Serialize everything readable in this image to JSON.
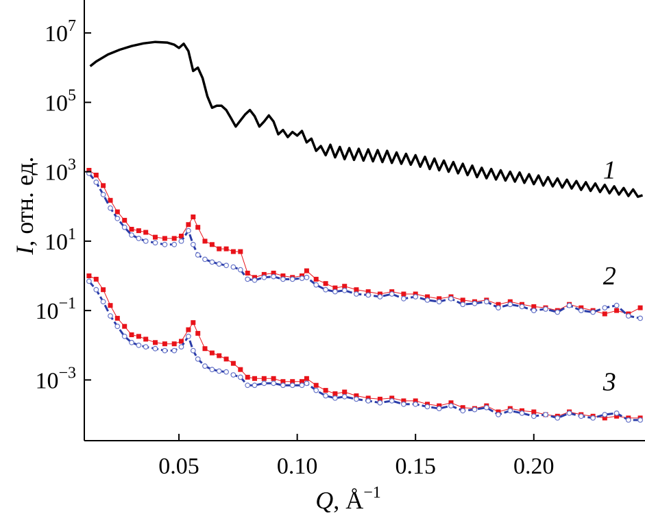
{
  "chart_data": {
    "type": "line",
    "title": "",
    "xlabel": {
      "symbol": "Q",
      "unit": "Å",
      "exponent": "−1"
    },
    "ylabel": {
      "symbol": "I",
      "unit": "отн. ед."
    },
    "x_ticks": [
      {
        "value": 0.05,
        "label": "0.05"
      },
      {
        "value": 0.1,
        "label": "0.10"
      },
      {
        "value": 0.15,
        "label": "0.15"
      },
      {
        "value": 0.2,
        "label": "0.20"
      }
    ],
    "y_ticks": [
      {
        "exp": 7,
        "label_base": "10",
        "label_exp": "7"
      },
      {
        "exp": 5,
        "label_base": "10",
        "label_exp": "5"
      },
      {
        "exp": 3,
        "label_base": "10",
        "label_exp": "3"
      },
      {
        "exp": 1,
        "label_base": "10",
        "label_exp": "1"
      },
      {
        "exp": -1,
        "label_base": "10",
        "label_exp": "−1"
      },
      {
        "exp": -3,
        "label_base": "10",
        "label_exp": "−3"
      }
    ],
    "xlim": [
      0.01,
      0.247
    ],
    "ylim_log10": [
      -4.75,
      7.95
    ],
    "yscale": "log",
    "grid": false,
    "curve_labels": [
      {
        "text": "1",
        "x": 0.232,
        "y": 1000
      },
      {
        "text": "2",
        "x": 0.232,
        "y": 0.9
      },
      {
        "text": "3",
        "x": 0.232,
        "y": 0.0008
      }
    ],
    "series": [
      {
        "id": "1",
        "color": "#000000",
        "style": "line",
        "x": [
          0.0125,
          0.015,
          0.02,
          0.025,
          0.03,
          0.035,
          0.04,
          0.045,
          0.048,
          0.05,
          0.052,
          0.054,
          0.056,
          0.058,
          0.06,
          0.062,
          0.064,
          0.066,
          0.068,
          0.07,
          0.072,
          0.074,
          0.076,
          0.078,
          0.08,
          0.082,
          0.084,
          0.086,
          0.088,
          0.09,
          0.092,
          0.094,
          0.096,
          0.098,
          0.1,
          0.102,
          0.104,
          0.106,
          0.108,
          0.11,
          0.112,
          0.114,
          0.116,
          0.118,
          0.12,
          0.122,
          0.124,
          0.126,
          0.128,
          0.13,
          0.132,
          0.134,
          0.136,
          0.138,
          0.14,
          0.142,
          0.144,
          0.146,
          0.148,
          0.15,
          0.152,
          0.154,
          0.156,
          0.158,
          0.16,
          0.162,
          0.164,
          0.166,
          0.168,
          0.17,
          0.172,
          0.174,
          0.176,
          0.178,
          0.18,
          0.182,
          0.184,
          0.186,
          0.188,
          0.19,
          0.192,
          0.194,
          0.196,
          0.198,
          0.2,
          0.202,
          0.204,
          0.206,
          0.208,
          0.21,
          0.212,
          0.214,
          0.216,
          0.218,
          0.22,
          0.222,
          0.224,
          0.226,
          0.228,
          0.23,
          0.232,
          0.234,
          0.236,
          0.238,
          0.24,
          0.242,
          0.244,
          0.246
        ],
        "y": [
          1100000,
          1500000,
          2400000,
          3300000,
          4200000,
          5000000,
          5500000,
          5300000,
          4600000,
          3700000,
          4900000,
          3000000,
          800000,
          1000000,
          500000,
          150000,
          70000,
          80000,
          80000,
          60000,
          35000,
          20000,
          30000,
          45000,
          60000,
          40000,
          20000,
          28000,
          42000,
          28000,
          12000,
          16000,
          10000,
          14000,
          11000,
          15000,
          7000,
          9000,
          4000,
          5500,
          3000,
          6000,
          2600,
          5200,
          2300,
          4800,
          2200,
          4600,
          2100,
          4400,
          2000,
          4200,
          1900,
          4000,
          1800,
          3600,
          1700,
          3300,
          1600,
          3000,
          1400,
          2700,
          1200,
          2400,
          1100,
          2100,
          1000,
          1900,
          900,
          1700,
          800,
          1500,
          700,
          1300,
          650,
          1200,
          600,
          1100,
          560,
          1000,
          520,
          950,
          480,
          850,
          440,
          780,
          400,
          700,
          380,
          640,
          350,
          590,
          330,
          540,
          300,
          500,
          280,
          460,
          260,
          420,
          240,
          380,
          220,
          340,
          200,
          310,
          190,
          210
        ]
      },
      {
        "id": "2-exp",
        "color": "#e8131a",
        "style": "squares",
        "x": [
          0.012,
          0.015,
          0.018,
          0.021,
          0.024,
          0.027,
          0.03,
          0.033,
          0.036,
          0.04,
          0.044,
          0.048,
          0.051,
          0.054,
          0.056,
          0.058,
          0.061,
          0.064,
          0.067,
          0.07,
          0.073,
          0.076,
          0.079,
          0.082,
          0.086,
          0.09,
          0.094,
          0.098,
          0.102,
          0.104,
          0.108,
          0.112,
          0.116,
          0.12,
          0.125,
          0.13,
          0.135,
          0.14,
          0.145,
          0.15,
          0.155,
          0.16,
          0.165,
          0.17,
          0.175,
          0.18,
          0.185,
          0.19,
          0.195,
          0.2,
          0.205,
          0.21,
          0.215,
          0.22,
          0.225,
          0.23,
          0.235,
          0.24,
          0.245
        ],
        "y": [
          1100,
          800,
          400,
          150,
          70,
          40,
          22,
          20,
          18,
          13,
          12,
          12,
          14,
          30,
          50,
          25,
          10,
          8,
          6,
          6,
          5,
          5,
          1.2,
          0.9,
          1.1,
          1.2,
          1.0,
          0.9,
          1.0,
          1.4,
          0.8,
          0.6,
          0.45,
          0.5,
          0.4,
          0.35,
          0.3,
          0.35,
          0.3,
          0.3,
          0.25,
          0.22,
          0.25,
          0.2,
          0.18,
          0.2,
          0.15,
          0.18,
          0.15,
          0.13,
          0.12,
          0.1,
          0.15,
          0.12,
          0.1,
          0.08,
          0.1,
          0.08,
          0.12
        ]
      },
      {
        "id": "2-fit",
        "color": "#6674c8",
        "style": "line-circles",
        "x": [
          0.012,
          0.015,
          0.018,
          0.021,
          0.024,
          0.027,
          0.03,
          0.033,
          0.036,
          0.04,
          0.044,
          0.048,
          0.051,
          0.054,
          0.056,
          0.058,
          0.061,
          0.064,
          0.067,
          0.07,
          0.073,
          0.076,
          0.079,
          0.082,
          0.086,
          0.09,
          0.094,
          0.098,
          0.102,
          0.104,
          0.108,
          0.112,
          0.116,
          0.12,
          0.125,
          0.13,
          0.135,
          0.14,
          0.145,
          0.15,
          0.155,
          0.16,
          0.165,
          0.17,
          0.175,
          0.18,
          0.185,
          0.19,
          0.195,
          0.2,
          0.205,
          0.21,
          0.215,
          0.22,
          0.225,
          0.23,
          0.235,
          0.24,
          0.245
        ],
        "y": [
          900,
          500,
          220,
          90,
          45,
          25,
          15,
          12,
          10,
          9,
          8,
          8,
          10,
          20,
          8,
          4,
          3,
          2.5,
          2.2,
          2,
          1.8,
          1.5,
          0.8,
          0.75,
          0.9,
          0.95,
          0.8,
          0.8,
          0.85,
          0.9,
          0.55,
          0.4,
          0.35,
          0.38,
          0.3,
          0.28,
          0.25,
          0.3,
          0.22,
          0.25,
          0.2,
          0.18,
          0.22,
          0.15,
          0.16,
          0.18,
          0.12,
          0.15,
          0.13,
          0.1,
          0.11,
          0.09,
          0.14,
          0.1,
          0.09,
          0.12,
          0.14,
          0.07,
          0.06
        ]
      },
      {
        "id": "3-exp",
        "color": "#e8131a",
        "style": "squares",
        "x": [
          0.012,
          0.015,
          0.018,
          0.021,
          0.024,
          0.027,
          0.03,
          0.033,
          0.036,
          0.04,
          0.044,
          0.048,
          0.051,
          0.054,
          0.056,
          0.058,
          0.061,
          0.064,
          0.067,
          0.07,
          0.073,
          0.076,
          0.079,
          0.082,
          0.086,
          0.09,
          0.094,
          0.098,
          0.102,
          0.104,
          0.108,
          0.112,
          0.116,
          0.12,
          0.125,
          0.13,
          0.135,
          0.14,
          0.145,
          0.15,
          0.155,
          0.16,
          0.165,
          0.17,
          0.175,
          0.18,
          0.185,
          0.19,
          0.195,
          0.2,
          0.205,
          0.21,
          0.215,
          0.22,
          0.225,
          0.23,
          0.235,
          0.24,
          0.245
        ],
        "y": [
          1,
          0.8,
          0.4,
          0.14,
          0.06,
          0.035,
          0.02,
          0.018,
          0.015,
          0.012,
          0.011,
          0.011,
          0.013,
          0.028,
          0.045,
          0.022,
          0.008,
          0.006,
          0.005,
          0.004,
          0.003,
          0.002,
          0.0012,
          0.0011,
          0.0011,
          0.0011,
          0.0009,
          0.0009,
          0.0009,
          0.0011,
          0.0007,
          0.0005,
          0.0004,
          0.00045,
          0.00035,
          0.0003,
          0.00028,
          0.0003,
          0.00025,
          0.00025,
          0.0002,
          0.00018,
          0.00022,
          0.00016,
          0.00015,
          0.00018,
          0.00012,
          0.00015,
          0.00013,
          0.00012,
          0.0001,
          9e-05,
          0.00012,
          0.0001,
          9e-05,
          8e-05,
          9e-05,
          8e-05,
          8e-05
        ]
      },
      {
        "id": "3-fit",
        "color": "#6674c8",
        "style": "line-circles",
        "x": [
          0.012,
          0.015,
          0.018,
          0.021,
          0.024,
          0.027,
          0.03,
          0.033,
          0.036,
          0.04,
          0.044,
          0.048,
          0.051,
          0.054,
          0.056,
          0.058,
          0.061,
          0.064,
          0.067,
          0.07,
          0.073,
          0.076,
          0.079,
          0.082,
          0.086,
          0.09,
          0.094,
          0.098,
          0.102,
          0.104,
          0.108,
          0.112,
          0.116,
          0.12,
          0.125,
          0.13,
          0.135,
          0.14,
          0.145,
          0.15,
          0.155,
          0.16,
          0.165,
          0.17,
          0.175,
          0.18,
          0.185,
          0.19,
          0.195,
          0.2,
          0.205,
          0.21,
          0.215,
          0.22,
          0.225,
          0.23,
          0.235,
          0.24,
          0.245
        ],
        "y": [
          0.7,
          0.4,
          0.18,
          0.07,
          0.035,
          0.018,
          0.012,
          0.01,
          0.009,
          0.008,
          0.007,
          0.007,
          0.009,
          0.018,
          0.007,
          0.004,
          0.0025,
          0.002,
          0.0018,
          0.0017,
          0.0014,
          0.0012,
          0.0007,
          0.0007,
          0.0008,
          0.0008,
          0.0007,
          0.0007,
          0.0007,
          0.0008,
          0.0005,
          0.00035,
          0.0003,
          0.00033,
          0.00028,
          0.00025,
          0.00022,
          0.00025,
          0.0002,
          0.0002,
          0.00017,
          0.00015,
          0.00018,
          0.00013,
          0.00014,
          0.00016,
          0.0001,
          0.00013,
          0.00011,
          9e-05,
          0.0001,
          8e-05,
          0.00011,
          9e-05,
          8e-05,
          0.0001,
          0.00011,
          7e-05,
          7e-05
        ]
      }
    ]
  }
}
